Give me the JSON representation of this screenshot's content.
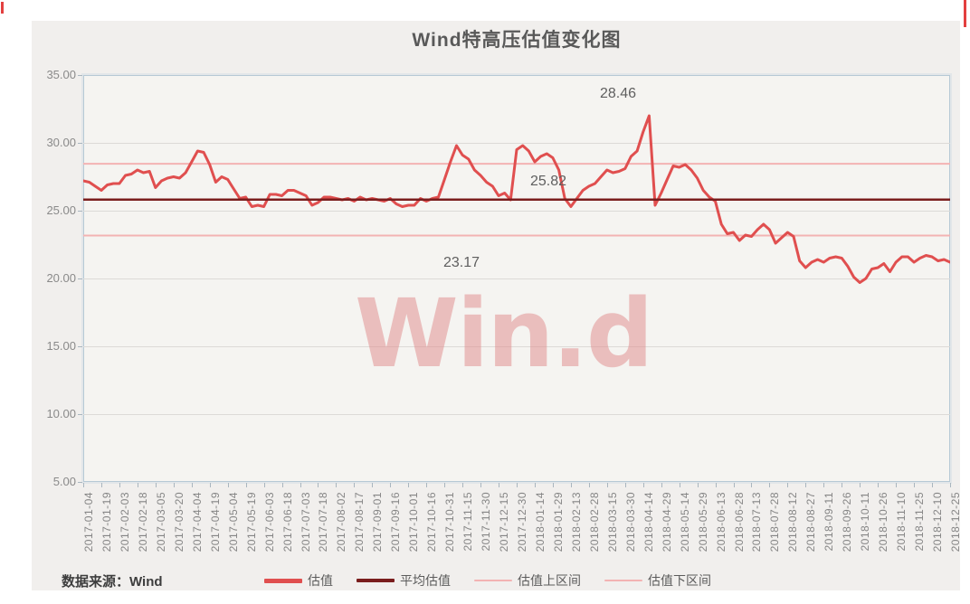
{
  "title": "Wind特高压估值变化图",
  "source_note": "数据来源：Wind",
  "watermark": "Win.d",
  "annotations": {
    "upper": "28.46",
    "average": "25.82",
    "lower": "23.17"
  },
  "colors": {
    "series": "#e04f4f",
    "average_line": "#7a1d1d",
    "band_line": "#f3b3b3",
    "panel_bg": "#f1efed",
    "plot_bg": "#f5f4f1",
    "plot_border": "#b6c9d5"
  },
  "legend": [
    {
      "label": "估值",
      "color": "#e04f4f"
    },
    {
      "label": "平均估值",
      "color": "#7a1d1d"
    },
    {
      "label": "估值上区间",
      "color": "#f3b3b3"
    },
    {
      "label": "估值下区间",
      "color": "#f3b3b3"
    }
  ],
  "chart_data": {
    "type": "line",
    "title": "Wind特高压估值变化图",
    "ylabel": "",
    "xlabel": "",
    "ylim": [
      5,
      35
    ],
    "grid": true,
    "legend_position": "bottom",
    "y_ticks": [
      "35.00",
      "30.00",
      "25.00",
      "20.00",
      "15.00",
      "10.00",
      "5.00"
    ],
    "x_tick_labels": [
      "2017-01-04",
      "2017-01-19",
      "2017-02-03",
      "2017-02-18",
      "2017-03-05",
      "2017-03-20",
      "2017-04-04",
      "2017-04-19",
      "2017-05-04",
      "2017-05-19",
      "2017-06-03",
      "2017-06-18",
      "2017-07-03",
      "2017-07-18",
      "2017-08-02",
      "2017-08-17",
      "2017-09-01",
      "2017-09-16",
      "2017-10-01",
      "2017-10-16",
      "2017-10-31",
      "2017-11-15",
      "2017-11-30",
      "2017-12-15",
      "2017-12-30",
      "2018-01-14",
      "2018-01-29",
      "2018-02-13",
      "2018-02-28",
      "2018-03-15",
      "2018-03-30",
      "2018-04-14",
      "2018-04-29",
      "2018-05-14",
      "2018-05-29",
      "2018-06-13",
      "2018-06-28",
      "2018-07-13",
      "2018-07-28",
      "2018-08-12",
      "2018-08-27",
      "2018-09-11",
      "2018-09-26",
      "2018-10-11",
      "2018-10-26",
      "2018-11-10",
      "2018-11-25",
      "2018-12-10",
      "2018-12-25"
    ],
    "reference_lines": {
      "average": 25.82,
      "upper_band": 28.46,
      "lower_band": 23.17
    },
    "series": [
      {
        "name": "估值",
        "color": "#e04f4f",
        "values": [
          27.2,
          27.1,
          26.8,
          26.5,
          26.9,
          27.0,
          27.0,
          27.6,
          27.7,
          28.0,
          27.8,
          27.9,
          26.7,
          27.2,
          27.4,
          27.5,
          27.4,
          27.8,
          28.6,
          29.4,
          29.3,
          28.4,
          27.1,
          27.5,
          27.3,
          26.6,
          25.9,
          26.0,
          25.3,
          25.4,
          25.3,
          26.2,
          26.2,
          26.1,
          26.5,
          26.5,
          26.3,
          26.1,
          25.4,
          25.6,
          26.0,
          26.0,
          25.9,
          25.8,
          25.9,
          25.7,
          26.0,
          25.8,
          25.9,
          25.8,
          25.7,
          25.9,
          25.5,
          25.3,
          25.4,
          25.4,
          25.9,
          25.7,
          25.9,
          26.0,
          27.3,
          28.6,
          29.8,
          29.1,
          28.8,
          28.0,
          27.6,
          27.1,
          26.8,
          26.1,
          26.3,
          25.8,
          29.5,
          29.8,
          29.4,
          28.6,
          29.0,
          29.2,
          28.9,
          28.0,
          25.9,
          25.3,
          25.9,
          26.5,
          26.8,
          27.0,
          27.5,
          28.0,
          27.8,
          27.9,
          28.1,
          29.0,
          29.4,
          30.8,
          32.0,
          25.4,
          26.3,
          27.3,
          28.3,
          28.2,
          28.4,
          28.0,
          27.4,
          26.5,
          26.0,
          25.7,
          24.0,
          23.3,
          23.4,
          22.8,
          23.2,
          23.1,
          23.6,
          24.0,
          23.6,
          22.6,
          23.0,
          23.4,
          23.1,
          21.3,
          20.8,
          21.2,
          21.4,
          21.2,
          21.5,
          21.6,
          21.5,
          20.9,
          20.1,
          19.7,
          20.0,
          20.7,
          20.8,
          21.1,
          20.5,
          21.2,
          21.6,
          21.6,
          21.2,
          21.5,
          21.7,
          21.6,
          21.3,
          21.4,
          21.2
        ]
      },
      {
        "name": "平均估值",
        "color": "#7a1d1d",
        "constant": 25.82
      },
      {
        "name": "估值上区间",
        "color": "#f3b3b3",
        "constant": 28.46
      },
      {
        "name": "估值下区间",
        "color": "#f3b3b3",
        "constant": 23.17
      }
    ]
  }
}
